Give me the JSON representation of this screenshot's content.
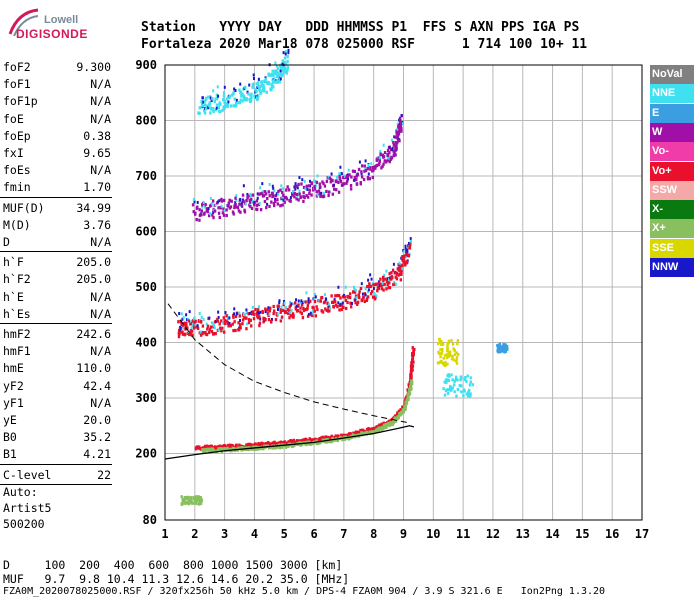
{
  "logo": {
    "line1": "Lowell",
    "line2": "DIGISONDE"
  },
  "header": {
    "row1": "Station   YYYY DAY   DDD HHMMSS P1  FFS S AXN PPS IGA PS",
    "row2": "Fortaleza 2020 Mar18 078 025000 RSF      1 714 100 10+ 11"
  },
  "params_group1": [
    {
      "k": "foF2",
      "v": "9.300"
    },
    {
      "k": "foF1",
      "v": "N/A"
    },
    {
      "k": "foF1p",
      "v": "N/A"
    },
    {
      "k": "foE",
      "v": "N/A"
    },
    {
      "k": "foEp",
      "v": "0.38"
    },
    {
      "k": "fxI",
      "v": "9.65"
    },
    {
      "k": "foEs",
      "v": "N/A"
    },
    {
      "k": "fmin",
      "v": "1.70"
    }
  ],
  "params_group2": [
    {
      "k": "MUF(D)",
      "v": "34.99"
    },
    {
      "k": "M(D)",
      "v": "3.76"
    },
    {
      "k": "D",
      "v": "N/A"
    }
  ],
  "params_group3": [
    {
      "k": "h`F",
      "v": "205.0"
    },
    {
      "k": "h`F2",
      "v": "205.0"
    },
    {
      "k": "h`E",
      "v": "N/A"
    },
    {
      "k": "h`Es",
      "v": "N/A"
    }
  ],
  "params_group4": [
    {
      "k": "hmF2",
      "v": "242.6"
    },
    {
      "k": "hmF1",
      "v": "N/A"
    },
    {
      "k": "hmE",
      "v": "110.0"
    },
    {
      "k": "yF2",
      "v": "42.4"
    },
    {
      "k": "yF1",
      "v": "N/A"
    },
    {
      "k": "yE",
      "v": "20.0"
    },
    {
      "k": "B0",
      "v": "35.2"
    },
    {
      "k": "B1",
      "v": "4.21"
    }
  ],
  "params_group5": [
    {
      "k": "C-level",
      "v": "22"
    }
  ],
  "autoscaler": {
    "line1": "Auto:",
    "line2": "Artist5",
    "line3": "500200"
  },
  "legend": [
    {
      "label": "NoVal",
      "color": "#808080"
    },
    {
      "label": "NNE",
      "color": "#3fe0f0"
    },
    {
      "label": "E",
      "color": "#3a9ee0"
    },
    {
      "label": "W",
      "color": "#a010a8"
    },
    {
      "label": "Vo-",
      "color": "#f03ca8"
    },
    {
      "label": "Vo+",
      "color": "#e8102c"
    },
    {
      "label": "SSW",
      "color": "#f4a8a8"
    },
    {
      "label": "X-",
      "color": "#0a7a10"
    },
    {
      "label": "X+",
      "color": "#88c060"
    },
    {
      "label": "SSE",
      "color": "#d8d800"
    },
    {
      "label": "NNW",
      "color": "#1818c8"
    }
  ],
  "footer": {
    "row1": "D     100  200  400  600  800 1000 1500 3000 [km]",
    "row2": "MUF   9.7  9.8 10.4 11.3 12.6 14.6 20.2 35.0 [MHz]",
    "row3": "FZA0M_2020078025000.RSF / 320fx256h 50 kHz 5.0 km / DPS-4 FZA0M 904 / 3.9 S 321.6 E   Ion2Png 1.3.20"
  },
  "chart_data": {
    "type": "scatter",
    "xlim": [
      1,
      17
    ],
    "ylim": [
      80,
      900
    ],
    "xticks": [
      "1",
      "2",
      "3",
      "4",
      "5",
      "6",
      "7",
      "8",
      "9",
      "10",
      "11",
      "12",
      "13",
      "14",
      "15",
      "16",
      "17"
    ],
    "yticks": [
      "80",
      "200",
      "300",
      "400",
      "500",
      "600",
      "700",
      "800",
      "900"
    ],
    "grid": true,
    "traces": [
      {
        "name": "O-trace",
        "color": "#e8102c",
        "points": [
          [
            2,
            210
          ],
          [
            3,
            212
          ],
          [
            4,
            215
          ],
          [
            5,
            220
          ],
          [
            6,
            225
          ],
          [
            7,
            232
          ],
          [
            8,
            245
          ],
          [
            8.6,
            260
          ],
          [
            9.0,
            285
          ],
          [
            9.2,
            330
          ],
          [
            9.3,
            390
          ]
        ]
      },
      {
        "name": "X-trace",
        "color": "#88c060",
        "points": [
          [
            2.2,
            205
          ],
          [
            3,
            207
          ],
          [
            4,
            210
          ],
          [
            5,
            214
          ],
          [
            6,
            220
          ],
          [
            7,
            228
          ],
          [
            8,
            240
          ],
          [
            8.6,
            256
          ],
          [
            9.0,
            280
          ],
          [
            9.25,
            330
          ]
        ]
      },
      {
        "name": "2F",
        "color": "#e8102c",
        "points": [
          [
            1.4,
            410
          ],
          [
            2,
            415
          ],
          [
            3,
            420
          ],
          [
            4,
            430
          ],
          [
            5,
            440
          ],
          [
            6,
            450
          ],
          [
            7,
            462
          ],
          [
            8,
            480
          ],
          [
            8.8,
            510
          ],
          [
            9.2,
            560
          ]
        ]
      },
      {
        "name": "3F",
        "color": "#a010a8",
        "points": [
          [
            1.9,
            620
          ],
          [
            3,
            630
          ],
          [
            4,
            640
          ],
          [
            5,
            650
          ],
          [
            6,
            662
          ],
          [
            7,
            675
          ],
          [
            8,
            700
          ],
          [
            8.7,
            740
          ],
          [
            8.9,
            790
          ]
        ]
      },
      {
        "name": "4F",
        "color": "#3fe0f0",
        "points": [
          [
            2.1,
            808
          ],
          [
            3,
            820
          ],
          [
            4,
            838
          ],
          [
            4.6,
            860
          ],
          [
            5.1,
            890
          ]
        ]
      }
    ],
    "profile": [
      [
        1.0,
        190
      ],
      [
        2,
        198
      ],
      [
        3,
        205
      ],
      [
        4,
        210
      ],
      [
        5,
        215
      ],
      [
        6,
        220
      ],
      [
        7,
        228
      ],
      [
        8,
        236
      ],
      [
        8.8,
        245
      ],
      [
        9.2,
        250
      ],
      [
        9.35,
        248
      ]
    ],
    "dashed_profile": [
      [
        1.1,
        470
      ],
      [
        2,
        405
      ],
      [
        3,
        360
      ],
      [
        4,
        330
      ],
      [
        5,
        310
      ],
      [
        6,
        293
      ],
      [
        7,
        280
      ],
      [
        8,
        268
      ],
      [
        9.2,
        255
      ]
    ],
    "clusters": [
      {
        "x": 10.3,
        "y": 305,
        "w": 1.0,
        "h": 40,
        "color": "#3fe0f0"
      },
      {
        "x": 10.1,
        "y": 360,
        "w": 0.7,
        "h": 50,
        "color": "#d8d800"
      },
      {
        "x": 12.1,
        "y": 385,
        "w": 0.35,
        "h": 15,
        "color": "#3a9ee0"
      },
      {
        "x": 1.5,
        "y": 110,
        "w": 0.7,
        "h": 15,
        "color": "#88c060"
      }
    ]
  }
}
